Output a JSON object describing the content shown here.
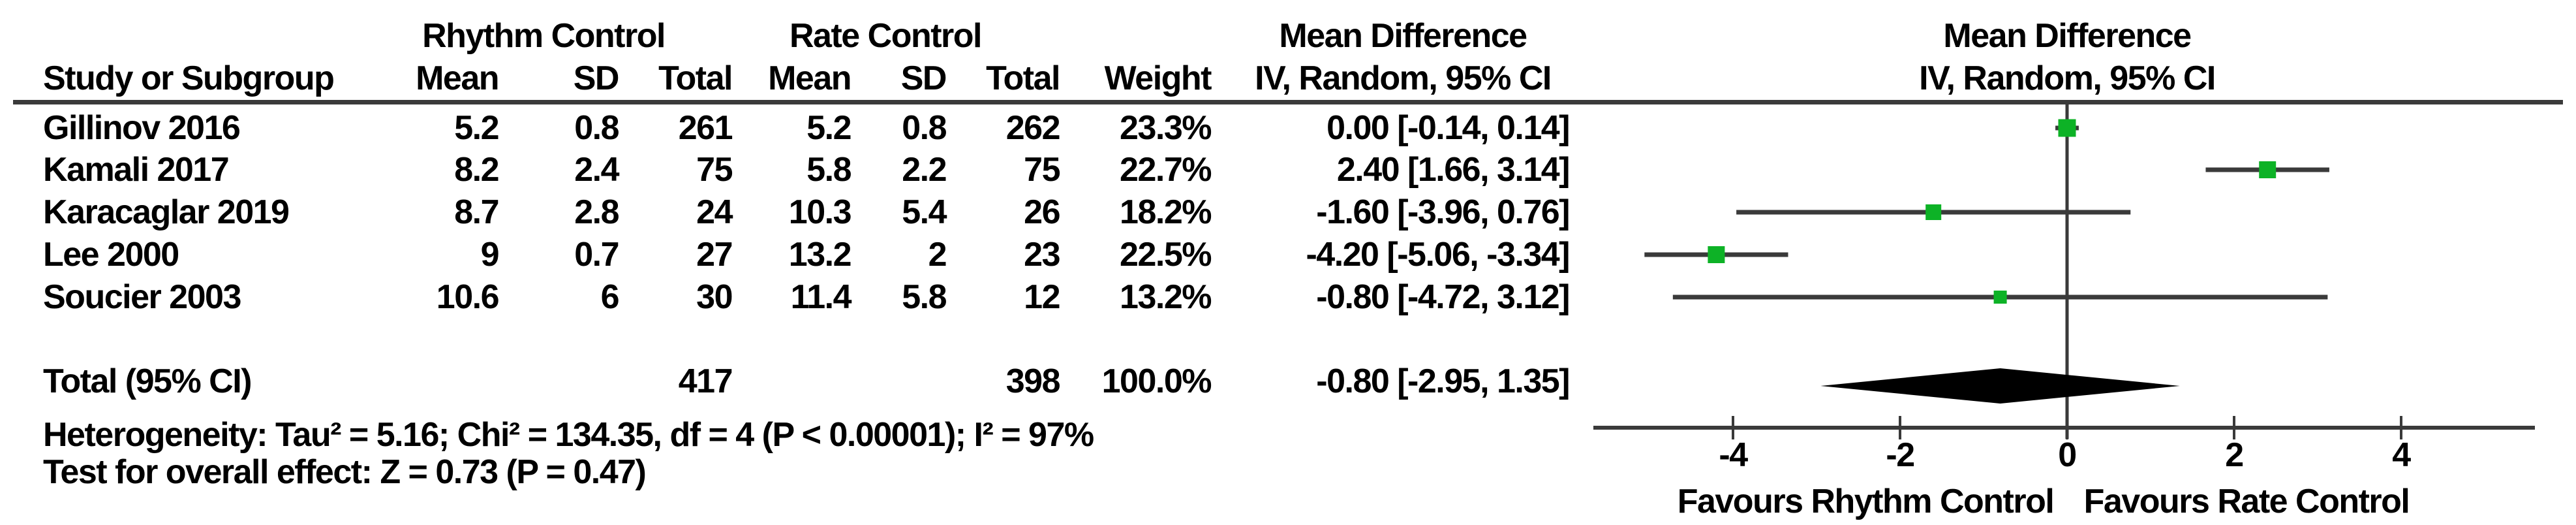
{
  "header": {
    "group1": "Rhythm Control",
    "group2": "Rate Control",
    "study": "Study or Subgroup",
    "mean": "Mean",
    "sd": "SD",
    "total": "Total",
    "weight": "Weight",
    "effect_line1": "Mean Difference",
    "effect_line2": "IV, Random, 95% CI"
  },
  "chart_data": {
    "type": "forest",
    "effect_measure": "Mean Difference",
    "method": "IV, Random, 95% CI",
    "x_ticks": [
      -4,
      -2,
      0,
      2,
      4
    ],
    "xlim": [
      -5.65,
      5.6
    ],
    "grid": false,
    "studies": [
      {
        "name": "Gillinov 2016",
        "mean1": "5.2",
        "sd1": "0.8",
        "n1": "261",
        "mean2": "5.2",
        "sd2": "0.8",
        "n2": "262",
        "weight": "23.3%",
        "weight_pct": 23.3,
        "md": 0.0,
        "lo": -0.14,
        "hi": 0.14,
        "ci_text": "0.00 [-0.14, 0.14]"
      },
      {
        "name": "Kamali 2017",
        "mean1": "8.2",
        "sd1": "2.4",
        "n1": "75",
        "mean2": "5.8",
        "sd2": "2.2",
        "n2": "75",
        "weight": "22.7%",
        "weight_pct": 22.7,
        "md": 2.4,
        "lo": 1.66,
        "hi": 3.14,
        "ci_text": "2.40 [1.66, 3.14]"
      },
      {
        "name": "Karacaglar 2019",
        "mean1": "8.7",
        "sd1": "2.8",
        "n1": "24",
        "mean2": "10.3",
        "sd2": "5.4",
        "n2": "26",
        "weight": "18.2%",
        "weight_pct": 18.2,
        "md": -1.6,
        "lo": -3.96,
        "hi": 0.76,
        "ci_text": "-1.60 [-3.96, 0.76]"
      },
      {
        "name": "Lee 2000",
        "mean1": "9",
        "sd1": "0.7",
        "n1": "27",
        "mean2": "13.2",
        "sd2": "2",
        "n2": "23",
        "weight": "22.5%",
        "weight_pct": 22.5,
        "md": -4.2,
        "lo": -5.06,
        "hi": -3.34,
        "ci_text": "-4.20 [-5.06, -3.34]"
      },
      {
        "name": "Soucier 2003",
        "mean1": "10.6",
        "sd1": "6",
        "n1": "30",
        "mean2": "11.4",
        "sd2": "5.8",
        "n2": "12",
        "weight": "13.2%",
        "weight_pct": 13.2,
        "md": -0.8,
        "lo": -4.72,
        "hi": 3.12,
        "ci_text": "-0.80 [-4.72, 3.12]"
      }
    ],
    "total": {
      "label": "Total (95% CI)",
      "n1": "417",
      "n2": "398",
      "weight": "100.0%",
      "md": -0.8,
      "lo": -2.95,
      "hi": 1.35,
      "ci_text": "-0.80 [-2.95, 1.35]"
    },
    "heterogeneity": {
      "tau2": 5.16,
      "chi2": 134.35,
      "df": 4,
      "p": "< 0.00001",
      "i2": "97%"
    },
    "overall_effect": {
      "z": 0.73,
      "p": 0.47
    }
  },
  "stats": {
    "heterogeneity": "Heterogeneity: Tau² = 5.16; Chi² = 134.35, df = 4 (P < 0.00001); I² = 97%",
    "overall": "Test for overall effect: Z = 0.73 (P = 0.47)"
  },
  "axis": {
    "favours_left": "Favours Rhythm Control",
    "favours_right": "Favours Rate Control"
  },
  "colors": {
    "marker": "#0db226",
    "line": "#3a3a3a",
    "diamond": "#000000",
    "text": "#000000"
  }
}
